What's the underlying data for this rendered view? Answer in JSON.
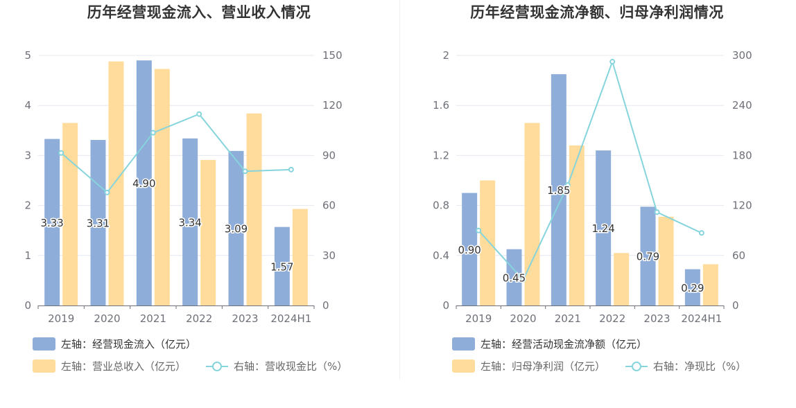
{
  "chart_data": [
    {
      "type": "bar",
      "title": "历年经营现金流入、营业收入情况",
      "categories": [
        "2019",
        "2020",
        "2021",
        "2022",
        "2023",
        "2024H1"
      ],
      "left_axis": {
        "ticks": [
          "0",
          "1",
          "2",
          "3",
          "4",
          "5"
        ],
        "ylim": [
          0,
          5
        ]
      },
      "right_axis": {
        "ticks": [
          "0",
          "30",
          "60",
          "90",
          "120",
          "150"
        ],
        "ylim": [
          0,
          150
        ]
      },
      "series": [
        {
          "name": "左轴：经营现金流入（亿元）",
          "type": "bar",
          "axis": "left",
          "color": "#8fadd9",
          "values": [
            3.33,
            3.31,
            4.9,
            3.34,
            3.09,
            1.57
          ],
          "labels": [
            "3.33",
            "3.31",
            "4.90",
            "3.34",
            "3.09",
            "1.57"
          ]
        },
        {
          "name": "左轴：营业总收入（亿元）",
          "type": "bar",
          "axis": "left",
          "color": "#ffdc9b",
          "values": [
            3.65,
            4.88,
            4.73,
            2.91,
            3.84,
            1.93
          ]
        },
        {
          "name": "右轴：营收现金比（%）",
          "type": "line",
          "axis": "right",
          "color": "#86d4dc",
          "values": [
            91.5,
            67.8,
            103.6,
            114.8,
            80.5,
            81.5
          ]
        }
      ],
      "grid": true,
      "legend_position": "bottom"
    },
    {
      "type": "bar",
      "title": "历年经营现金流净额、归母净利润情况",
      "categories": [
        "2019",
        "2020",
        "2021",
        "2022",
        "2023",
        "2024H1"
      ],
      "left_axis": {
        "ticks": [
          "0",
          "0.4",
          "0.8",
          "1.2",
          "1.6",
          "2"
        ],
        "ylim": [
          0,
          2
        ]
      },
      "right_axis": {
        "ticks": [
          "0",
          "60",
          "120",
          "180",
          "240",
          "300"
        ],
        "ylim": [
          0,
          300
        ]
      },
      "series": [
        {
          "name": "左轴：经营活动现金流净额（亿元）",
          "type": "bar",
          "axis": "left",
          "color": "#8fadd9",
          "values": [
            0.9,
            0.45,
            1.85,
            1.24,
            0.79,
            0.29
          ],
          "labels": [
            "0.90",
            "0.45",
            "1.85",
            "1.24",
            "0.79",
            "0.29"
          ]
        },
        {
          "name": "左轴：归母净利润（亿元）",
          "type": "bar",
          "axis": "left",
          "color": "#ffdc9b",
          "values": [
            1.0,
            1.46,
            1.28,
            0.42,
            0.71,
            0.33
          ]
        },
        {
          "name": "右轴：净现比（%）",
          "type": "line",
          "axis": "right",
          "color": "#86d4dc",
          "values": [
            90,
            30.8,
            144.5,
            292.5,
            112,
            87
          ]
        }
      ],
      "grid": true,
      "legend_position": "bottom"
    }
  ]
}
